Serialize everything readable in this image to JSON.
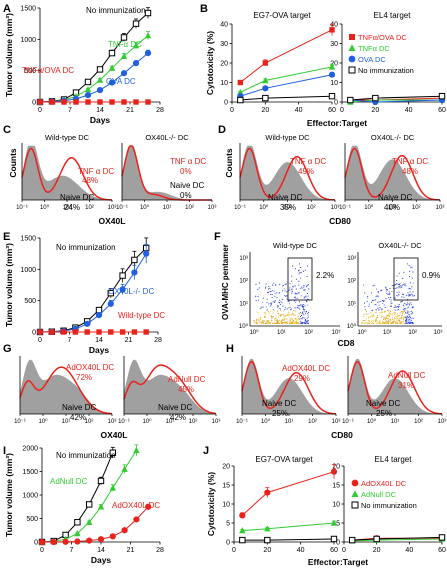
{
  "figure": {
    "panels": {
      "A": {
        "letter": "A",
        "title": "",
        "ylabel": "Tumor volume (mm³)",
        "xlabel": "Days",
        "xticks": [
          "0",
          "7",
          "14",
          "21",
          "28"
        ],
        "yticks": [
          "0",
          "500",
          "1000",
          "1500"
        ],
        "labels": [
          {
            "text": "No immunization",
            "color": "#000000"
          },
          {
            "text": "TNFα DC",
            "color": "#33cc33"
          },
          {
            "text": "TNFα/OVA DC",
            "color": "#e8231c"
          },
          {
            "text": "OVA DC",
            "color": "#1f5fe0"
          }
        ]
      },
      "B": {
        "letter": "B",
        "ylabel": "Cytotoxicity (%)",
        "xlabel": "Effector:Target",
        "left_title": "EG7-OVA target",
        "right_title": "EL4 target",
        "xticks": [
          "0",
          "20",
          "40",
          "60"
        ],
        "yticks": [
          "0",
          "10",
          "20",
          "30",
          "40"
        ],
        "legend": [
          {
            "text": "TNFα/OVA DC",
            "color": "#e8231c",
            "marker": "square"
          },
          {
            "text": "TNFα DC",
            "color": "#33cc33",
            "marker": "triangle"
          },
          {
            "text": "OVA DC",
            "color": "#1f5fe0",
            "marker": "circle"
          },
          {
            "text": "No immunization",
            "color": "#000000",
            "marker": "open-square"
          }
        ]
      },
      "C": {
        "letter": "C",
        "xlabel": "OX40L",
        "ylabel": "Counts",
        "left": {
          "title": "Wild-type DC",
          "red_label": "TNF α  DC",
          "red_pct": "48%",
          "gray_label": "Naive DC",
          "gray_pct": "24%"
        },
        "right": {
          "title": "OX40L-/- DC",
          "red_label": "TNF α  DC",
          "red_pct": "0%",
          "gray_label": "Naive DC",
          "gray_pct": "0%"
        },
        "xticks": [
          "10⁻¹",
          "10⁰",
          "10¹",
          "10²",
          "10³"
        ]
      },
      "D": {
        "letter": "D",
        "xlabel": "CD80",
        "ylabel": "Counts",
        "left": {
          "title": "Wild-type DC",
          "red_label": "TNF α  DC",
          "red_pct": "49%",
          "gray_label": "Naive DC",
          "gray_pct": "35%"
        },
        "right": {
          "title": "OX40L-/- DC",
          "red_label": "TNF α  DC",
          "red_pct": "48%",
          "gray_label": "Naive DC",
          "gray_pct": "40%"
        },
        "xticks": [
          "10⁻¹",
          "10⁰",
          "10¹",
          "10²",
          "10³"
        ]
      },
      "E": {
        "letter": "E",
        "ylabel": "Tumor volume (mm³)",
        "xlabel": "Days",
        "xticks": [
          "0",
          "7",
          "14",
          "21",
          "28"
        ],
        "yticks": [
          "0",
          "500",
          "1000",
          "1500"
        ],
        "labels": [
          {
            "text": "No immunization",
            "color": "#000000"
          },
          {
            "text": "OX40L-/- DC",
            "color": "#1f5fe0"
          },
          {
            "text": "Wild-type DC",
            "color": "#e8231c"
          }
        ]
      },
      "F": {
        "letter": "F",
        "ylabel": "OVA-MHC pentamer",
        "xlabel": "CD8",
        "left": {
          "title": "Wild-type DC",
          "pct": "2.2%"
        },
        "right": {
          "title": "OX40L-/- DC",
          "pct": "0.9%"
        },
        "yticks": [
          "10³",
          "10²",
          "10¹",
          "10⁰"
        ],
        "xticks": [
          "10⁰",
          "10¹",
          "10²",
          "10³"
        ]
      },
      "G": {
        "letter": "G",
        "xlabel": "OX40L",
        "left": {
          "red_label": "AdOX40L DC",
          "red_pct": "72%",
          "gray_label": "Naive DC",
          "gray_pct": "42%"
        },
        "right": {
          "red_label": "AdNull DC",
          "red_pct": "45%",
          "gray_label": "Naive DC",
          "gray_pct": "42%"
        },
        "xticks": [
          "10⁻¹",
          "10⁰",
          "10¹",
          "10²",
          "10³"
        ]
      },
      "H": {
        "letter": "H",
        "xlabel": "CD80",
        "left": {
          "red_label": "AdOX40L DC",
          "red_pct": "29%",
          "gray_label": "Naive DC",
          "gray_pct": "25%"
        },
        "right": {
          "red_label": "AdNull DC",
          "red_pct": "31%",
          "gray_label": "Naive DC",
          "gray_pct": "25%"
        },
        "xticks": [
          "10⁻¹",
          "10⁰",
          "10¹",
          "10²",
          "10³"
        ]
      },
      "I": {
        "letter": "I",
        "ylabel": "Tumor volume (mm³)",
        "xlabel": "Days",
        "xticks": [
          "0",
          "7",
          "14",
          "21",
          "28"
        ],
        "yticks": [
          "0",
          "500",
          "1000",
          "1500",
          "2000"
        ],
        "labels": [
          {
            "text": "No immunization",
            "color": "#000000"
          },
          {
            "text": "AdNull DC",
            "color": "#33cc33"
          },
          {
            "text": "AdOX40L DC",
            "color": "#e8231c"
          }
        ]
      },
      "J": {
        "letter": "J",
        "ylabel": "Cytotoxicity (%)",
        "xlabel": "Effector:Target",
        "left_title": "EG7-OVA target",
        "right_title": "EL4 target",
        "xticks": [
          "0",
          "20",
          "40",
          "60"
        ],
        "yticks": [
          "0",
          "5",
          "10",
          "15",
          "20"
        ],
        "legend": [
          {
            "text": "AdOX40L DC",
            "color": "#e8231c",
            "marker": "circle"
          },
          {
            "text": "AdNull DC",
            "color": "#33cc33",
            "marker": "triangle"
          },
          {
            "text": "No immunization",
            "color": "#000000",
            "marker": "open-square"
          }
        ]
      }
    }
  },
  "chart_data": [
    {
      "panel": "A",
      "type": "line",
      "xlabel": "Days",
      "ylabel": "Tumor volume (mm³)",
      "xlim": [
        0,
        30
      ],
      "ylim": [
        0,
        1500
      ],
      "series": [
        {
          "name": "No immunization",
          "color": "#000000",
          "marker": "open-square",
          "x": [
            0,
            3,
            6,
            9,
            12,
            15,
            18,
            21,
            24,
            27
          ],
          "y": [
            0,
            10,
            40,
            150,
            320,
            520,
            780,
            1030,
            1250,
            1420
          ]
        },
        {
          "name": "TNFα DC",
          "color": "#33cc33",
          "marker": "triangle",
          "x": [
            0,
            3,
            6,
            9,
            12,
            15,
            18,
            21,
            24,
            27
          ],
          "y": [
            0,
            5,
            30,
            90,
            200,
            350,
            540,
            730,
            900,
            1060
          ]
        },
        {
          "name": "OVA DC",
          "color": "#1f5fe0",
          "marker": "circle",
          "x": [
            0,
            3,
            6,
            9,
            12,
            15,
            18,
            21,
            24,
            27
          ],
          "y": [
            0,
            5,
            20,
            50,
            110,
            190,
            310,
            460,
            620,
            780
          ]
        },
        {
          "name": "TNFα/OVA DC",
          "color": "#e8231c",
          "marker": "square",
          "x": [
            0,
            3,
            6,
            9,
            12,
            15,
            18,
            21,
            24,
            27
          ],
          "y": [
            0,
            0,
            0,
            0,
            0,
            0,
            0,
            0,
            0,
            0
          ]
        }
      ]
    },
    {
      "panel": "B",
      "type": "line",
      "title": "EG7-OVA target",
      "xlabel": "Effector:Target",
      "ylabel": "Cytotoxicity (%)",
      "xlim": [
        0,
        60
      ],
      "ylim": [
        0,
        40
      ],
      "series": [
        {
          "name": "TNFα/OVA DC",
          "color": "#e8231c",
          "marker": "square",
          "x": [
            5,
            20,
            60
          ],
          "y": [
            10,
            20,
            37
          ]
        },
        {
          "name": "TNFα DC",
          "color": "#33cc33",
          "marker": "triangle",
          "x": [
            5,
            20,
            60
          ],
          "y": [
            5,
            11,
            18
          ]
        },
        {
          "name": "OVA DC",
          "color": "#1f5fe0",
          "marker": "circle",
          "x": [
            5,
            20,
            60
          ],
          "y": [
            3,
            7,
            14
          ]
        },
        {
          "name": "No immunization",
          "color": "#000000",
          "marker": "open-square",
          "x": [
            5,
            20,
            60
          ],
          "y": [
            1,
            2,
            3
          ]
        }
      ]
    },
    {
      "panel": "B",
      "type": "line",
      "title": "EL4 target",
      "xlabel": "Effector:Target",
      "xlim": [
        0,
        60
      ],
      "ylim": [
        0,
        40
      ],
      "series": [
        {
          "name": "TNFα/OVA DC",
          "color": "#e8231c",
          "marker": "square",
          "x": [
            5,
            20,
            60
          ],
          "y": [
            1,
            1,
            2
          ]
        },
        {
          "name": "TNFα DC",
          "color": "#33cc33",
          "marker": "triangle",
          "x": [
            5,
            20,
            60
          ],
          "y": [
            0,
            1,
            1
          ]
        },
        {
          "name": "OVA DC",
          "color": "#1f5fe0",
          "marker": "circle",
          "x": [
            5,
            20,
            60
          ],
          "y": [
            1,
            0,
            1
          ]
        },
        {
          "name": "No immunization",
          "color": "#000000",
          "marker": "open-square",
          "x": [
            5,
            20,
            60
          ],
          "y": [
            1,
            2,
            3
          ]
        }
      ]
    },
    {
      "panel": "E",
      "type": "line",
      "xlabel": "Days",
      "ylabel": "Tumor volume (mm³)",
      "xlim": [
        0,
        30
      ],
      "ylim": [
        0,
        1500
      ],
      "series": [
        {
          "name": "No immunization",
          "color": "#000000",
          "marker": "open-square",
          "x": [
            0,
            3,
            6,
            9,
            12,
            15,
            18,
            21,
            24,
            27
          ],
          "y": [
            0,
            5,
            20,
            70,
            170,
            350,
            620,
            900,
            1150,
            1340
          ]
        },
        {
          "name": "OX40L-/- DC",
          "color": "#1f5fe0",
          "marker": "circle",
          "x": [
            0,
            3,
            6,
            9,
            12,
            15,
            18,
            21,
            24,
            27
          ],
          "y": [
            0,
            5,
            15,
            50,
            130,
            270,
            450,
            680,
            950,
            1250
          ]
        },
        {
          "name": "Wild-type DC",
          "color": "#e8231c",
          "marker": "square",
          "x": [
            0,
            3,
            6,
            9,
            12,
            15,
            18,
            21,
            24,
            27
          ],
          "y": [
            0,
            0,
            0,
            0,
            0,
            0,
            0,
            0,
            0,
            0
          ]
        }
      ]
    },
    {
      "panel": "I",
      "type": "line",
      "xlabel": "Days",
      "ylabel": "Tumor volume (mm³)",
      "xlim": [
        0,
        30
      ],
      "ylim": [
        0,
        2000
      ],
      "series": [
        {
          "name": "No immunization",
          "color": "#000000",
          "marker": "open-square",
          "x": [
            0,
            3,
            6,
            9,
            12,
            15,
            18
          ],
          "y": [
            0,
            20,
            150,
            420,
            800,
            1300,
            1900
          ]
        },
        {
          "name": "AdNull DC",
          "color": "#33cc33",
          "marker": "triangle",
          "x": [
            0,
            3,
            6,
            9,
            12,
            15,
            18,
            21,
            24
          ],
          "y": [
            0,
            10,
            60,
            180,
            420,
            750,
            1150,
            1550,
            1950
          ]
        },
        {
          "name": "AdOX40L DC",
          "color": "#e8231c",
          "marker": "circle",
          "x": [
            0,
            3,
            6,
            9,
            12,
            15,
            18,
            21,
            24,
            27
          ],
          "y": [
            0,
            0,
            5,
            10,
            30,
            60,
            120,
            250,
            480,
            750
          ]
        }
      ]
    },
    {
      "panel": "J",
      "type": "line",
      "title": "EG7-OVA target",
      "xlabel": "Effector:Target",
      "ylabel": "Cytotoxicity (%)",
      "xlim": [
        0,
        60
      ],
      "ylim": [
        0,
        20
      ],
      "series": [
        {
          "name": "AdOX40L DC",
          "color": "#e8231c",
          "marker": "circle",
          "x": [
            5,
            20,
            60
          ],
          "y": [
            7,
            13,
            18.5
          ]
        },
        {
          "name": "AdNull DC",
          "color": "#33cc33",
          "marker": "triangle",
          "x": [
            5,
            20,
            60
          ],
          "y": [
            3,
            3.5,
            5
          ]
        },
        {
          "name": "No immunization",
          "color": "#000000",
          "marker": "open-square",
          "x": [
            5,
            20,
            60
          ],
          "y": [
            0.5,
            0.5,
            0.8
          ]
        }
      ]
    },
    {
      "panel": "J",
      "type": "line",
      "title": "EL4 target",
      "xlabel": "Effector:Target",
      "xlim": [
        0,
        60
      ],
      "ylim": [
        0,
        20
      ],
      "series": [
        {
          "name": "AdOX40L DC",
          "color": "#e8231c",
          "marker": "circle",
          "x": [
            5,
            20,
            60
          ],
          "y": [
            0.5,
            1,
            1
          ]
        },
        {
          "name": "AdNull DC",
          "color": "#33cc33",
          "marker": "triangle",
          "x": [
            5,
            20,
            60
          ],
          "y": [
            0.3,
            0.5,
            0.8
          ]
        },
        {
          "name": "No immunization",
          "color": "#000000",
          "marker": "open-square",
          "x": [
            5,
            20,
            60
          ],
          "y": [
            0.5,
            0.8,
            1.2
          ]
        }
      ]
    }
  ]
}
